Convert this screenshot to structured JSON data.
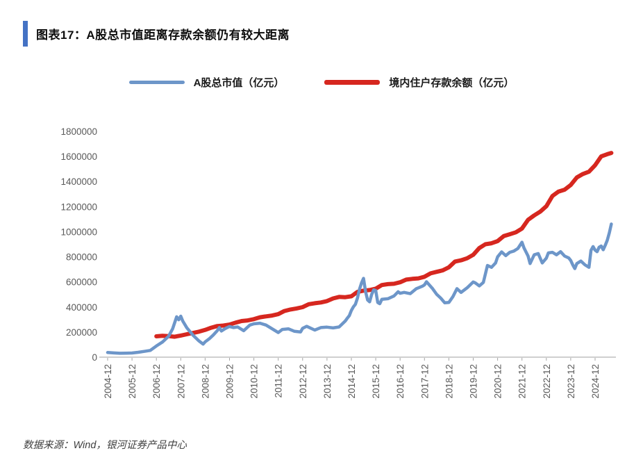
{
  "page": {
    "title": "图表17：A股总市值距离存款余额仍有较大距离",
    "source_note": "数据来源：Wind，银河证券产品中心"
  },
  "colors": {
    "accent_bar": "#4472C4",
    "series_a_share": "#6D96C9",
    "series_deposits": "#D6271F",
    "axis_line": "#BFBFBF",
    "tick_mark": "#A6A6A6",
    "tick_text": "#595959"
  },
  "chart_data": {
    "type": "line",
    "title": "图表17：A股总市值距离存款余额仍有较大距离",
    "xlabel": "",
    "ylabel": "",
    "unit": "亿元",
    "grid": false,
    "legend_position": "top-center",
    "ylim": [
      0,
      1800000
    ],
    "y_ticks": [
      0,
      200000,
      400000,
      600000,
      800000,
      1000000,
      1200000,
      1400000,
      1600000,
      1800000
    ],
    "x_tick_labels": [
      "2004-12",
      "2005-12",
      "2006-12",
      "2007-12",
      "2008-12",
      "2009-12",
      "2010-12",
      "2011-12",
      "2012-12",
      "2013-12",
      "2014-12",
      "2015-12",
      "2016-12",
      "2017-12",
      "2018-12",
      "2019-12",
      "2020-12",
      "2021-12",
      "2022-12",
      "2023-12",
      "2024-12"
    ],
    "series": [
      {
        "name": "A股总市值（亿元）",
        "color": "#6D96C9",
        "stroke_width": 4.5,
        "points": [
          [
            "2004-12",
            37000
          ],
          [
            "2005-03",
            34000
          ],
          [
            "2005-06",
            31000
          ],
          [
            "2005-09",
            32000
          ],
          [
            "2005-12",
            33000
          ],
          [
            "2006-03",
            39000
          ],
          [
            "2006-06",
            46000
          ],
          [
            "2006-09",
            54000
          ],
          [
            "2006-12",
            89000
          ],
          [
            "2007-03",
            121000
          ],
          [
            "2007-06",
            166000
          ],
          [
            "2007-08",
            226000
          ],
          [
            "2007-10",
            322000
          ],
          [
            "2007-11",
            298000
          ],
          [
            "2007-12",
            327000
          ],
          [
            "2008-01",
            288000
          ],
          [
            "2008-03",
            234000
          ],
          [
            "2008-06",
            176000
          ],
          [
            "2008-09",
            129000
          ],
          [
            "2008-11",
            104000
          ],
          [
            "2008-12",
            122000
          ],
          [
            "2009-02",
            146000
          ],
          [
            "2009-04",
            176000
          ],
          [
            "2009-06",
            211000
          ],
          [
            "2009-07",
            236000
          ],
          [
            "2009-08",
            208000
          ],
          [
            "2009-10",
            229000
          ],
          [
            "2009-12",
            244000
          ],
          [
            "2010-02",
            236000
          ],
          [
            "2010-04",
            241000
          ],
          [
            "2010-07",
            211000
          ],
          [
            "2010-10",
            256000
          ],
          [
            "2010-12",
            266000
          ],
          [
            "2011-03",
            271000
          ],
          [
            "2011-06",
            256000
          ],
          [
            "2011-09",
            226000
          ],
          [
            "2011-12",
            196000
          ],
          [
            "2012-02",
            221000
          ],
          [
            "2012-05",
            226000
          ],
          [
            "2012-08",
            206000
          ],
          [
            "2012-11",
            201000
          ],
          [
            "2012-12",
            230000
          ],
          [
            "2013-02",
            246000
          ],
          [
            "2013-06",
            216000
          ],
          [
            "2013-09",
            236000
          ],
          [
            "2013-12",
            239000
          ],
          [
            "2014-03",
            233000
          ],
          [
            "2014-06",
            241000
          ],
          [
            "2014-09",
            288000
          ],
          [
            "2014-10",
            310000
          ],
          [
            "2014-11",
            331000
          ],
          [
            "2014-12",
            372000
          ],
          [
            "2015-01",
            401000
          ],
          [
            "2015-02",
            421000
          ],
          [
            "2015-03",
            471000
          ],
          [
            "2015-04",
            541000
          ],
          [
            "2015-05",
            591000
          ],
          [
            "2015-06",
            628000
          ],
          [
            "2015-07",
            521000
          ],
          [
            "2015-08",
            456000
          ],
          [
            "2015-09",
            441000
          ],
          [
            "2015-10",
            501000
          ],
          [
            "2015-11",
            536000
          ],
          [
            "2015-12",
            531000
          ],
          [
            "2016-01",
            436000
          ],
          [
            "2016-02",
            426000
          ],
          [
            "2016-03",
            461000
          ],
          [
            "2016-06",
            466000
          ],
          [
            "2016-09",
            488000
          ],
          [
            "2016-11",
            521000
          ],
          [
            "2016-12",
            509000
          ],
          [
            "2017-02",
            516000
          ],
          [
            "2017-05",
            506000
          ],
          [
            "2017-08",
            546000
          ],
          [
            "2017-11",
            566000
          ],
          [
            "2017-12",
            576000
          ],
          [
            "2018-01",
            601000
          ],
          [
            "2018-04",
            546000
          ],
          [
            "2018-06",
            501000
          ],
          [
            "2018-08",
            471000
          ],
          [
            "2018-10",
            433000
          ],
          [
            "2018-12",
            436000
          ],
          [
            "2019-02",
            483000
          ],
          [
            "2019-04",
            546000
          ],
          [
            "2019-06",
            516000
          ],
          [
            "2019-09",
            553000
          ],
          [
            "2019-12",
            599000
          ],
          [
            "2020-01",
            592000
          ],
          [
            "2020-03",
            568000
          ],
          [
            "2020-05",
            596000
          ],
          [
            "2020-07",
            731000
          ],
          [
            "2020-09",
            716000
          ],
          [
            "2020-11",
            751000
          ],
          [
            "2020-12",
            799000
          ],
          [
            "2021-02",
            839000
          ],
          [
            "2021-04",
            809000
          ],
          [
            "2021-06",
            836000
          ],
          [
            "2021-08",
            846000
          ],
          [
            "2021-10",
            866000
          ],
          [
            "2021-12",
            916000
          ],
          [
            "2022-01",
            871000
          ],
          [
            "2022-03",
            806000
          ],
          [
            "2022-04",
            746000
          ],
          [
            "2022-06",
            816000
          ],
          [
            "2022-08",
            826000
          ],
          [
            "2022-10",
            751000
          ],
          [
            "2022-12",
            789000
          ],
          [
            "2023-01",
            831000
          ],
          [
            "2023-03",
            836000
          ],
          [
            "2023-05",
            816000
          ],
          [
            "2023-07",
            841000
          ],
          [
            "2023-09",
            806000
          ],
          [
            "2023-11",
            791000
          ],
          [
            "2023-12",
            771000
          ],
          [
            "2024-01",
            736000
          ],
          [
            "2024-02",
            706000
          ],
          [
            "2024-03",
            746000
          ],
          [
            "2024-05",
            766000
          ],
          [
            "2024-07",
            736000
          ],
          [
            "2024-09",
            716000
          ],
          [
            "2024-10",
            851000
          ],
          [
            "2024-11",
            881000
          ],
          [
            "2024-12",
            853000
          ],
          [
            "2025-01",
            841000
          ],
          [
            "2025-02",
            876000
          ],
          [
            "2025-03",
            886000
          ],
          [
            "2025-04",
            856000
          ],
          [
            "2025-05",
            891000
          ],
          [
            "2025-06",
            931000
          ],
          [
            "2025-07",
            991000
          ],
          [
            "2025-08",
            1061000
          ]
        ]
      },
      {
        "name": "境内住户存款余额（亿元）",
        "color": "#D6271F",
        "stroke_width": 6,
        "points": [
          [
            "2006-12",
            166000
          ],
          [
            "2007-03",
            170000
          ],
          [
            "2007-06",
            168000
          ],
          [
            "2007-09",
            163000
          ],
          [
            "2007-12",
            172000
          ],
          [
            "2008-03",
            183000
          ],
          [
            "2008-06",
            193000
          ],
          [
            "2008-09",
            203000
          ],
          [
            "2008-12",
            217000
          ],
          [
            "2009-03",
            235000
          ],
          [
            "2009-06",
            248000
          ],
          [
            "2009-09",
            252000
          ],
          [
            "2009-12",
            260000
          ],
          [
            "2010-03",
            275000
          ],
          [
            "2010-06",
            288000
          ],
          [
            "2010-09",
            293000
          ],
          [
            "2010-12",
            303000
          ],
          [
            "2011-03",
            318000
          ],
          [
            "2011-06",
            325000
          ],
          [
            "2011-09",
            332000
          ],
          [
            "2011-12",
            343000
          ],
          [
            "2012-03",
            368000
          ],
          [
            "2012-06",
            380000
          ],
          [
            "2012-09",
            388000
          ],
          [
            "2012-12",
            399000
          ],
          [
            "2013-03",
            422000
          ],
          [
            "2013-06",
            430000
          ],
          [
            "2013-09",
            436000
          ],
          [
            "2013-12",
            447000
          ],
          [
            "2014-03",
            468000
          ],
          [
            "2014-06",
            480000
          ],
          [
            "2014-09",
            478000
          ],
          [
            "2014-12",
            485000
          ],
          [
            "2015-03",
            520000
          ],
          [
            "2015-06",
            530000
          ],
          [
            "2015-09",
            535000
          ],
          [
            "2015-12",
            546000
          ],
          [
            "2016-03",
            575000
          ],
          [
            "2016-06",
            582000
          ],
          [
            "2016-09",
            585000
          ],
          [
            "2016-12",
            597000
          ],
          [
            "2017-03",
            618000
          ],
          [
            "2017-06",
            624000
          ],
          [
            "2017-09",
            628000
          ],
          [
            "2017-12",
            641000
          ],
          [
            "2018-03",
            668000
          ],
          [
            "2018-06",
            680000
          ],
          [
            "2018-09",
            692000
          ],
          [
            "2018-12",
            716000
          ],
          [
            "2019-03",
            762000
          ],
          [
            "2019-06",
            772000
          ],
          [
            "2019-09",
            788000
          ],
          [
            "2019-12",
            816000
          ],
          [
            "2020-03",
            870000
          ],
          [
            "2020-06",
            900000
          ],
          [
            "2020-09",
            908000
          ],
          [
            "2020-12",
            925000
          ],
          [
            "2021-03",
            965000
          ],
          [
            "2021-06",
            980000
          ],
          [
            "2021-09",
            995000
          ],
          [
            "2021-12",
            1025000
          ],
          [
            "2022-03",
            1095000
          ],
          [
            "2022-06",
            1130000
          ],
          [
            "2022-09",
            1160000
          ],
          [
            "2022-12",
            1203000
          ],
          [
            "2023-03",
            1285000
          ],
          [
            "2023-06",
            1320000
          ],
          [
            "2023-09",
            1335000
          ],
          [
            "2023-12",
            1372000
          ],
          [
            "2024-03",
            1432000
          ],
          [
            "2024-06",
            1460000
          ],
          [
            "2024-09",
            1478000
          ],
          [
            "2024-12",
            1530000
          ],
          [
            "2025-03",
            1600000
          ],
          [
            "2025-06",
            1618000
          ],
          [
            "2025-08",
            1628000
          ]
        ]
      }
    ]
  }
}
